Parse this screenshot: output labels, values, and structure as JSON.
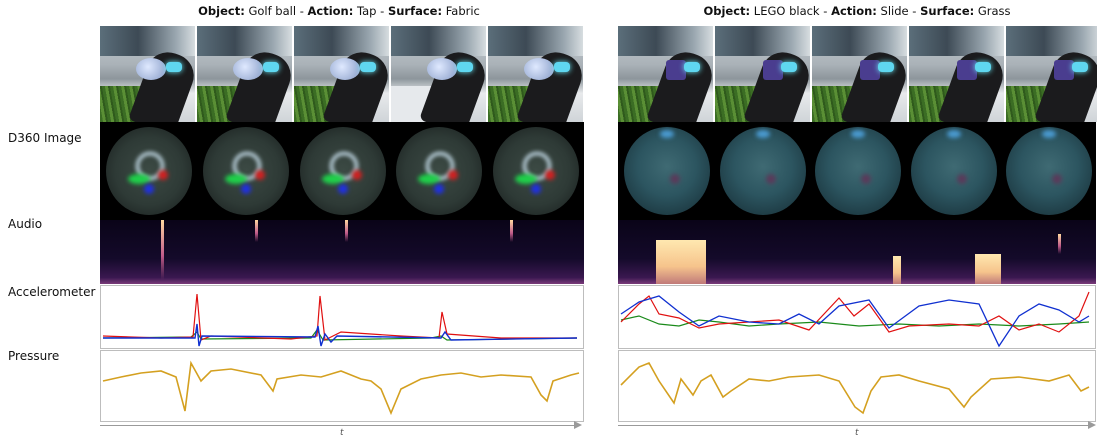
{
  "left": {
    "title": {
      "object_key": "Object:",
      "object_val": " Golf ball - ",
      "action_key": "Action:",
      "action_val": " Tap - ",
      "surface_key": "Surface:",
      "surface_val": " Fabric"
    }
  },
  "right": {
    "title": {
      "object_key": "Object:",
      "object_val": " LEGO black - ",
      "action_key": "Action:",
      "action_val": " Slide - ",
      "surface_key": "Surface:",
      "surface_val": " Grass"
    }
  },
  "rows": {
    "d360": "D360 Image",
    "audio": "Audio",
    "accelerometer": "Accelerometer",
    "pressure": "Pressure"
  },
  "axis_label": "t",
  "colors": {
    "acc_red": "#e01010",
    "acc_green": "#1a8a1a",
    "acc_blue": "#1030d0",
    "pressure": "#d4a020"
  }
}
